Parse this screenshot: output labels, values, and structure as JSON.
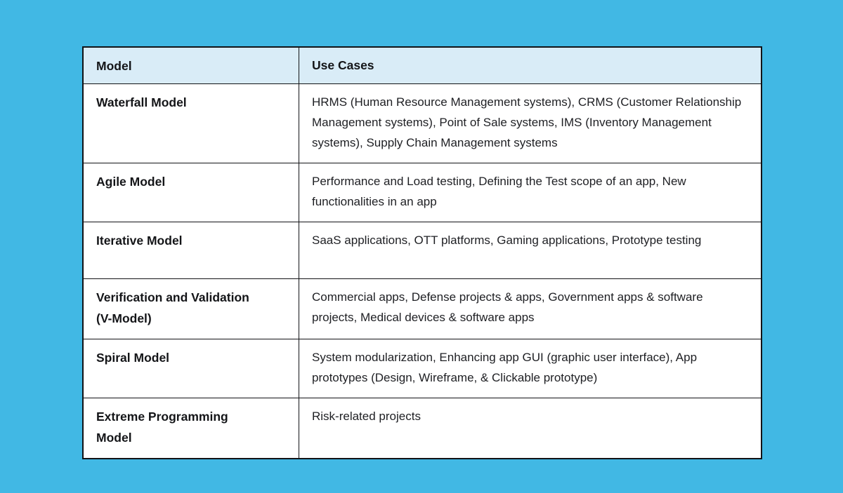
{
  "colors": {
    "page_background": "#41b8e4",
    "table_background": "#ffffff",
    "header_background": "#d9ecf7",
    "border_color": "#121316",
    "model_text_color": "#141518",
    "body_text_color": "#1e1f23"
  },
  "table": {
    "header": {
      "columns": [
        "Model",
        "Use Cases"
      ]
    },
    "rows": [
      {
        "model": "Waterfall Model",
        "use_cases": "HRMS (Human Resource Management systems), CRMS (Customer Relationship Management systems), Point of Sale systems, IMS (Inventory Management systems), Supply Chain Management systems"
      },
      {
        "model": "Agile Model",
        "use_cases": "Performance and Load testing, Defining the Test scope of an app, New functionalities in an app"
      },
      {
        "model": "Iterative Model",
        "use_cases": "SaaS applications, OTT platforms, Gaming applications, Prototype testing"
      },
      {
        "model": "Verification and Validation\n(V-Model)",
        "use_cases": "Commercial apps, Defense projects & apps, Government apps & software projects, Medical devices & software apps"
      },
      {
        "model": "Spiral Model",
        "use_cases": "System modularization, Enhancing app GUI (graphic user interface), App prototypes (Design, Wireframe, & Clickable prototype)"
      },
      {
        "model": "Extreme Programming\nModel",
        "use_cases": "Risk-related projects"
      }
    ]
  }
}
